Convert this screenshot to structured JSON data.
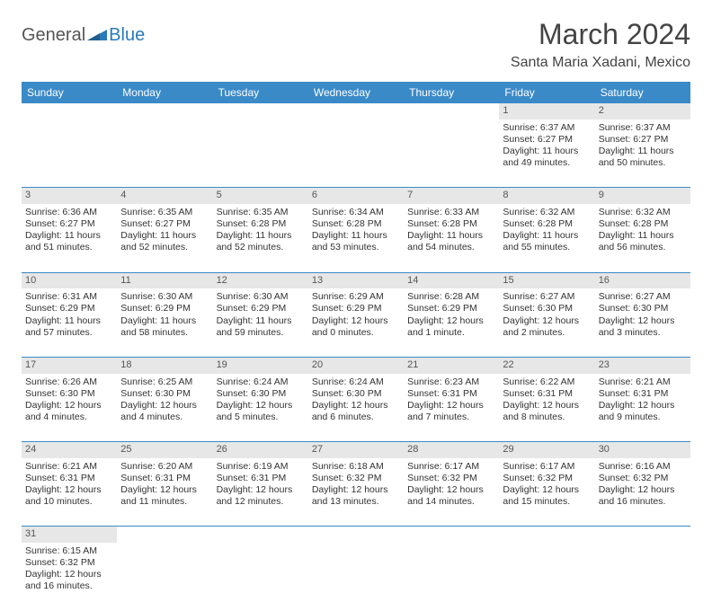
{
  "logo": {
    "part1": "General",
    "part2": "Blue"
  },
  "title": "March 2024",
  "location": "Santa Maria Xadani, Mexico",
  "colors": {
    "header_bg": "#3a8ac8",
    "header_text": "#ffffff",
    "daynum_bg": "#e7e7e7",
    "row_border": "#3a8ac8",
    "logo_gray": "#555555",
    "logo_blue": "#2a7ab9"
  },
  "weekdays": [
    "Sunday",
    "Monday",
    "Tuesday",
    "Wednesday",
    "Thursday",
    "Friday",
    "Saturday"
  ],
  "weeks": [
    {
      "nums": [
        "",
        "",
        "",
        "",
        "",
        "1",
        "2"
      ],
      "cells": [
        null,
        null,
        null,
        null,
        null,
        {
          "sunrise": "Sunrise: 6:37 AM",
          "sunset": "Sunset: 6:27 PM",
          "daylight": "Daylight: 11 hours and 49 minutes."
        },
        {
          "sunrise": "Sunrise: 6:37 AM",
          "sunset": "Sunset: 6:27 PM",
          "daylight": "Daylight: 11 hours and 50 minutes."
        }
      ]
    },
    {
      "nums": [
        "3",
        "4",
        "5",
        "6",
        "7",
        "8",
        "9"
      ],
      "cells": [
        {
          "sunrise": "Sunrise: 6:36 AM",
          "sunset": "Sunset: 6:27 PM",
          "daylight": "Daylight: 11 hours and 51 minutes."
        },
        {
          "sunrise": "Sunrise: 6:35 AM",
          "sunset": "Sunset: 6:27 PM",
          "daylight": "Daylight: 11 hours and 52 minutes."
        },
        {
          "sunrise": "Sunrise: 6:35 AM",
          "sunset": "Sunset: 6:28 PM",
          "daylight": "Daylight: 11 hours and 52 minutes."
        },
        {
          "sunrise": "Sunrise: 6:34 AM",
          "sunset": "Sunset: 6:28 PM",
          "daylight": "Daylight: 11 hours and 53 minutes."
        },
        {
          "sunrise": "Sunrise: 6:33 AM",
          "sunset": "Sunset: 6:28 PM",
          "daylight": "Daylight: 11 hours and 54 minutes."
        },
        {
          "sunrise": "Sunrise: 6:32 AM",
          "sunset": "Sunset: 6:28 PM",
          "daylight": "Daylight: 11 hours and 55 minutes."
        },
        {
          "sunrise": "Sunrise: 6:32 AM",
          "sunset": "Sunset: 6:28 PM",
          "daylight": "Daylight: 11 hours and 56 minutes."
        }
      ]
    },
    {
      "nums": [
        "10",
        "11",
        "12",
        "13",
        "14",
        "15",
        "16"
      ],
      "cells": [
        {
          "sunrise": "Sunrise: 6:31 AM",
          "sunset": "Sunset: 6:29 PM",
          "daylight": "Daylight: 11 hours and 57 minutes."
        },
        {
          "sunrise": "Sunrise: 6:30 AM",
          "sunset": "Sunset: 6:29 PM",
          "daylight": "Daylight: 11 hours and 58 minutes."
        },
        {
          "sunrise": "Sunrise: 6:30 AM",
          "sunset": "Sunset: 6:29 PM",
          "daylight": "Daylight: 11 hours and 59 minutes."
        },
        {
          "sunrise": "Sunrise: 6:29 AM",
          "sunset": "Sunset: 6:29 PM",
          "daylight": "Daylight: 12 hours and 0 minutes."
        },
        {
          "sunrise": "Sunrise: 6:28 AM",
          "sunset": "Sunset: 6:29 PM",
          "daylight": "Daylight: 12 hours and 1 minute."
        },
        {
          "sunrise": "Sunrise: 6:27 AM",
          "sunset": "Sunset: 6:30 PM",
          "daylight": "Daylight: 12 hours and 2 minutes."
        },
        {
          "sunrise": "Sunrise: 6:27 AM",
          "sunset": "Sunset: 6:30 PM",
          "daylight": "Daylight: 12 hours and 3 minutes."
        }
      ]
    },
    {
      "nums": [
        "17",
        "18",
        "19",
        "20",
        "21",
        "22",
        "23"
      ],
      "cells": [
        {
          "sunrise": "Sunrise: 6:26 AM",
          "sunset": "Sunset: 6:30 PM",
          "daylight": "Daylight: 12 hours and 4 minutes."
        },
        {
          "sunrise": "Sunrise: 6:25 AM",
          "sunset": "Sunset: 6:30 PM",
          "daylight": "Daylight: 12 hours and 4 minutes."
        },
        {
          "sunrise": "Sunrise: 6:24 AM",
          "sunset": "Sunset: 6:30 PM",
          "daylight": "Daylight: 12 hours and 5 minutes."
        },
        {
          "sunrise": "Sunrise: 6:24 AM",
          "sunset": "Sunset: 6:30 PM",
          "daylight": "Daylight: 12 hours and 6 minutes."
        },
        {
          "sunrise": "Sunrise: 6:23 AM",
          "sunset": "Sunset: 6:31 PM",
          "daylight": "Daylight: 12 hours and 7 minutes."
        },
        {
          "sunrise": "Sunrise: 6:22 AM",
          "sunset": "Sunset: 6:31 PM",
          "daylight": "Daylight: 12 hours and 8 minutes."
        },
        {
          "sunrise": "Sunrise: 6:21 AM",
          "sunset": "Sunset: 6:31 PM",
          "daylight": "Daylight: 12 hours and 9 minutes."
        }
      ]
    },
    {
      "nums": [
        "24",
        "25",
        "26",
        "27",
        "28",
        "29",
        "30"
      ],
      "cells": [
        {
          "sunrise": "Sunrise: 6:21 AM",
          "sunset": "Sunset: 6:31 PM",
          "daylight": "Daylight: 12 hours and 10 minutes."
        },
        {
          "sunrise": "Sunrise: 6:20 AM",
          "sunset": "Sunset: 6:31 PM",
          "daylight": "Daylight: 12 hours and 11 minutes."
        },
        {
          "sunrise": "Sunrise: 6:19 AM",
          "sunset": "Sunset: 6:31 PM",
          "daylight": "Daylight: 12 hours and 12 minutes."
        },
        {
          "sunrise": "Sunrise: 6:18 AM",
          "sunset": "Sunset: 6:32 PM",
          "daylight": "Daylight: 12 hours and 13 minutes."
        },
        {
          "sunrise": "Sunrise: 6:17 AM",
          "sunset": "Sunset: 6:32 PM",
          "daylight": "Daylight: 12 hours and 14 minutes."
        },
        {
          "sunrise": "Sunrise: 6:17 AM",
          "sunset": "Sunset: 6:32 PM",
          "daylight": "Daylight: 12 hours and 15 minutes."
        },
        {
          "sunrise": "Sunrise: 6:16 AM",
          "sunset": "Sunset: 6:32 PM",
          "daylight": "Daylight: 12 hours and 16 minutes."
        }
      ]
    },
    {
      "nums": [
        "31",
        "",
        "",
        "",
        "",
        "",
        ""
      ],
      "cells": [
        {
          "sunrise": "Sunrise: 6:15 AM",
          "sunset": "Sunset: 6:32 PM",
          "daylight": "Daylight: 12 hours and 16 minutes."
        },
        null,
        null,
        null,
        null,
        null,
        null
      ]
    }
  ]
}
